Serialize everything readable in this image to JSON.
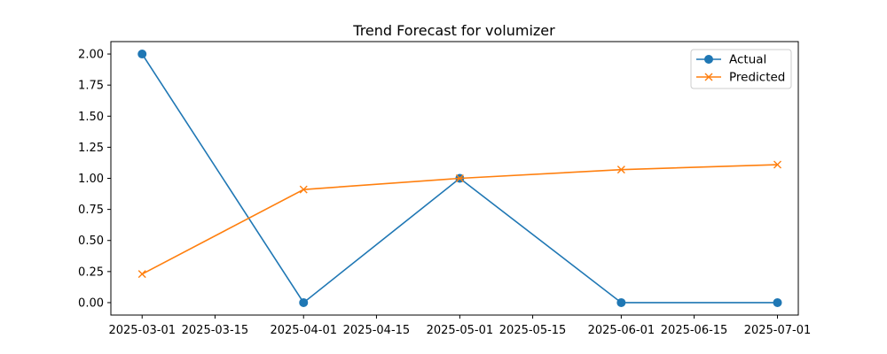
{
  "chart_data": {
    "type": "line",
    "title": "Trend Forecast for volumizer",
    "xlabel": "",
    "ylabel": "",
    "x_ticks": [
      "2025-03-01",
      "2025-03-15",
      "2025-04-01",
      "2025-04-15",
      "2025-05-01",
      "2025-05-15",
      "2025-06-01",
      "2025-06-15",
      "2025-07-01"
    ],
    "y_ticks": [
      "0.00",
      "0.25",
      "0.50",
      "0.75",
      "1.00",
      "1.25",
      "1.50",
      "1.75",
      "2.00"
    ],
    "ylim": [
      -0.1,
      2.1
    ],
    "xlim": [
      "2025-02-23",
      "2025-07-05"
    ],
    "grid": false,
    "legend_position": "top-right",
    "series": [
      {
        "name": "Actual",
        "color": "#1f77b4",
        "marker": "circle",
        "x": [
          "2025-03-01",
          "2025-04-01",
          "2025-05-01",
          "2025-06-01",
          "2025-07-01"
        ],
        "y": [
          2.0,
          0.0,
          1.0,
          0.0,
          0.0
        ]
      },
      {
        "name": "Predicted",
        "color": "#ff7f0e",
        "marker": "x",
        "x": [
          "2025-03-01",
          "2025-04-01",
          "2025-05-01",
          "2025-06-01",
          "2025-07-01"
        ],
        "y": [
          0.23,
          0.91,
          1.0,
          1.07,
          1.11
        ]
      }
    ]
  }
}
